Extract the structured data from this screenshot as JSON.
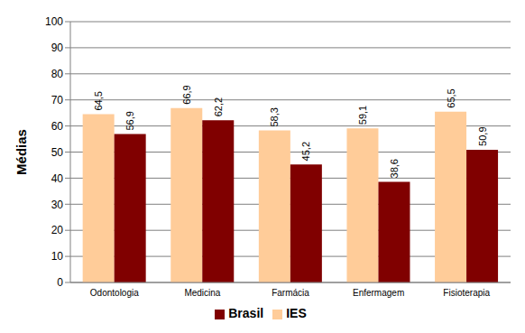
{
  "chart_data": {
    "type": "bar",
    "y_label": "Médias",
    "categories": [
      "Odontologia",
      "Medicina",
      "Farmácia",
      "Enfermagem",
      "Fisioterapia"
    ],
    "series": [
      {
        "name": "IES",
        "color": "#ffcc99",
        "values": [
          64.5,
          66.9,
          58.3,
          59.1,
          65.5
        ],
        "value_labels": [
          "64,5",
          "66,9",
          "58,3",
          "59,1",
          "65,5"
        ]
      },
      {
        "name": "Brasil",
        "color": "#800000",
        "values": [
          56.9,
          62.2,
          45.2,
          38.6,
          50.9
        ],
        "value_labels": [
          "56,9",
          "62,2",
          "45,2",
          "38,6",
          "50,9"
        ]
      }
    ],
    "ylim": [
      0,
      100
    ],
    "yticks": [
      0,
      10,
      20,
      30,
      40,
      50,
      60,
      70,
      80,
      90,
      100
    ],
    "grid": true,
    "legend": "bottom",
    "data_labels": true
  }
}
